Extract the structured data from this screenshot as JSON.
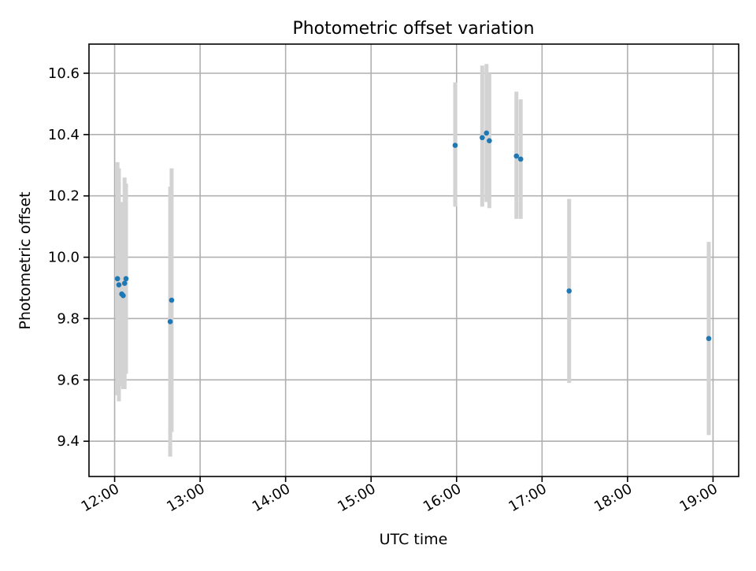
{
  "chart_data": {
    "type": "scatter",
    "title": "Photometric offset variation",
    "xlabel": "UTC time",
    "ylabel": "Photometric offset",
    "xlim": [
      "11:42",
      "19:18"
    ],
    "ylim": [
      9.285,
      10.695
    ],
    "x_ticks": [
      "12:00",
      "13:00",
      "14:00",
      "15:00",
      "16:00",
      "17:00",
      "18:00",
      "19:00"
    ],
    "y_ticks": [
      "9.4",
      "9.6",
      "9.8",
      "10.0",
      "10.2",
      "10.4",
      "10.6"
    ],
    "grid": true,
    "point_color": "#1f77b4",
    "errorbar_color": "#d3d3d3",
    "points": [
      {
        "x": "12:02",
        "y": 9.93,
        "ylow": 9.55,
        "yhigh": 10.31
      },
      {
        "x": "12:03",
        "y": 9.91,
        "ylow": 9.53,
        "yhigh": 10.29
      },
      {
        "x": "12:05",
        "y": 9.88,
        "ylow": 9.58,
        "yhigh": 10.18
      },
      {
        "x": "12:06",
        "y": 9.875,
        "ylow": 9.57,
        "yhigh": 10.17
      },
      {
        "x": "12:07",
        "y": 9.915,
        "ylow": 9.57,
        "yhigh": 10.26
      },
      {
        "x": "12:08",
        "y": 9.93,
        "ylow": 9.62,
        "yhigh": 10.24
      },
      {
        "x": "12:39",
        "y": 9.79,
        "ylow": 9.35,
        "yhigh": 10.23
      },
      {
        "x": "12:40",
        "y": 9.86,
        "ylow": 9.43,
        "yhigh": 10.29
      },
      {
        "x": "15:59",
        "y": 10.365,
        "ylow": 10.165,
        "yhigh": 10.57
      },
      {
        "x": "16:18",
        "y": 10.39,
        "ylow": 10.165,
        "yhigh": 10.625
      },
      {
        "x": "16:21",
        "y": 10.405,
        "ylow": 10.18,
        "yhigh": 10.63
      },
      {
        "x": "16:23",
        "y": 10.38,
        "ylow": 10.16,
        "yhigh": 10.6
      },
      {
        "x": "16:42",
        "y": 10.33,
        "ylow": 10.125,
        "yhigh": 10.54
      },
      {
        "x": "16:45",
        "y": 10.32,
        "ylow": 10.125,
        "yhigh": 10.515
      },
      {
        "x": "17:19",
        "y": 9.89,
        "ylow": 9.59,
        "yhigh": 10.19
      },
      {
        "x": "18:57",
        "y": 9.735,
        "ylow": 9.42,
        "yhigh": 10.05
      }
    ]
  }
}
